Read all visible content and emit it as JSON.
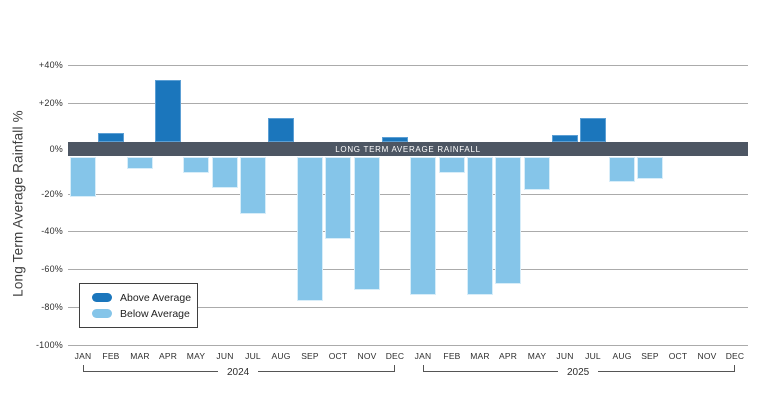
{
  "chart_data": {
    "type": "bar",
    "title": "",
    "ylabel": "Long Term Average Rainfall %",
    "band_label": "LONG TERM AVERAGE RAINFALL",
    "ylim": [
      -100,
      40
    ],
    "grid": true,
    "y_ticks": [
      {
        "value": 40,
        "label": "+40%"
      },
      {
        "value": 20,
        "label": "+20%"
      },
      {
        "value": 0,
        "label": "0%"
      },
      {
        "value": -20,
        "label": "-20%"
      },
      {
        "value": -40,
        "label": "-40%"
      },
      {
        "value": -60,
        "label": "-60%"
      },
      {
        "value": -80,
        "label": "-80%"
      },
      {
        "value": -100,
        "label": "-100%"
      }
    ],
    "years": [
      {
        "label": "2024",
        "categories": [
          "JAN",
          "FEB",
          "MAR",
          "APR",
          "MAY",
          "JUN",
          "JUL",
          "AUG",
          "SEP",
          "OCT",
          "NOV",
          "DEC"
        ],
        "values": [
          -22,
          4,
          -7,
          32,
          -9,
          -17,
          -31,
          12,
          -77,
          -44,
          -71,
          2
        ]
      },
      {
        "label": "2025",
        "categories": [
          "JAN",
          "FEB",
          "MAR",
          "APR",
          "MAY",
          "JUN",
          "JUL",
          "AUG",
          "SEP",
          "OCT",
          "NOV",
          "DEC"
        ],
        "values": [
          -74,
          -9,
          -74,
          -68,
          -18,
          3,
          12,
          -14,
          -12,
          null,
          null,
          null
        ]
      }
    ],
    "legend": [
      {
        "label": "Above Average",
        "color": "#1b76bc"
      },
      {
        "label": "Below Average",
        "color": "#85c5e9"
      }
    ],
    "legend_position": "bottom-left",
    "colors": {
      "above": "#1b76bc",
      "below": "#85c5e9",
      "band": "#4d5663",
      "gridline": "#ababab",
      "text": "#2f2f2f"
    }
  }
}
